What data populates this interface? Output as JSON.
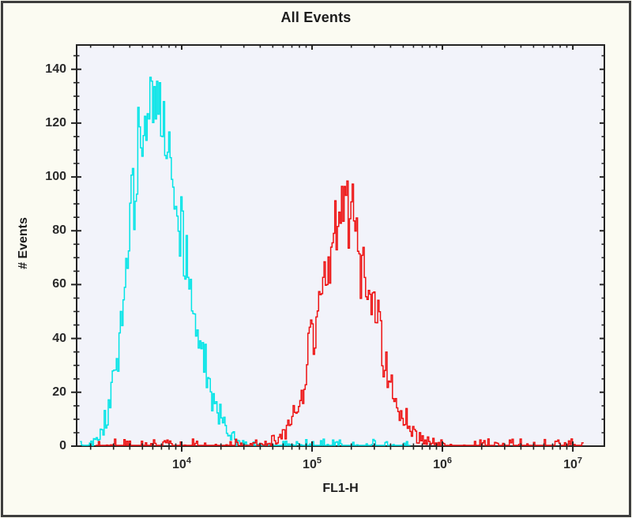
{
  "figure": {
    "background": "#fbfbf2",
    "border_color": "#3d3d3d",
    "plot_background": "#f2f3fa",
    "frame_color": "#232323",
    "text_color": "#1c1c1c"
  },
  "chart_data": {
    "type": "line",
    "subtype": "flow-cytometry-histogram-overlay",
    "title": "All Events",
    "xlabel": "FL1-H",
    "ylabel": "# Events",
    "grid": false,
    "legend": false,
    "x_scale": "log10",
    "x_range_log10": [
      3.194,
      7.242
    ],
    "x_major_ticks": [
      {
        "value": 10000,
        "base": "10",
        "exp": "4"
      },
      {
        "value": 100000,
        "base": "10",
        "exp": "5"
      },
      {
        "value": 1000000,
        "base": "10",
        "exp": "6"
      },
      {
        "value": 10000000,
        "base": "10",
        "exp": "7"
      }
    ],
    "ylim": [
      0,
      149
    ],
    "y_major_step": 20,
    "y_minor_step": 5,
    "y_tick_labels": [
      "0",
      "20",
      "40",
      "60",
      "80",
      "100",
      "120",
      "140"
    ],
    "series": [
      {
        "name": "cyan-population",
        "color": "#00e4e6",
        "peak": {
          "x_approx": 6500,
          "y_max": 137
        },
        "range_log10": [
          3.22,
          5.76
        ],
        "noise_scale": 1.9,
        "seed": 13,
        "y_cap": 137,
        "envelope": [
          [
            3.24,
            0.3
          ],
          [
            3.28,
            0.8
          ],
          [
            3.32,
            2
          ],
          [
            3.36,
            4
          ],
          [
            3.4,
            8
          ],
          [
            3.44,
            14
          ],
          [
            3.48,
            26
          ],
          [
            3.52,
            42
          ],
          [
            3.56,
            62
          ],
          [
            3.6,
            82
          ],
          [
            3.64,
            100
          ],
          [
            3.68,
            112
          ],
          [
            3.72,
            120
          ],
          [
            3.76,
            125
          ],
          [
            3.8,
            127
          ],
          [
            3.84,
            122
          ],
          [
            3.88,
            113
          ],
          [
            3.92,
            102
          ],
          [
            3.96,
            90
          ],
          [
            4.0,
            76
          ],
          [
            4.04,
            63
          ],
          [
            4.08,
            52
          ],
          [
            4.12,
            42
          ],
          [
            4.16,
            33
          ],
          [
            4.2,
            25
          ],
          [
            4.24,
            18
          ],
          [
            4.28,
            12
          ],
          [
            4.32,
            8
          ],
          [
            4.36,
            5
          ],
          [
            4.4,
            3
          ],
          [
            4.44,
            1.8
          ],
          [
            4.48,
            1
          ],
          [
            4.52,
            0.5
          ]
        ]
      },
      {
        "name": "red-population",
        "color": "#ee1111",
        "peak": {
          "x_approx": 180000,
          "y_max": 108
        },
        "range_log10": [
          3.34,
          7.08
        ],
        "noise_scale": 2.2,
        "seed": 101,
        "y_cap": 108,
        "envelope": [
          [
            4.56,
            0.4
          ],
          [
            4.62,
            0.8
          ],
          [
            4.68,
            1.5
          ],
          [
            4.74,
            3
          ],
          [
            4.8,
            6
          ],
          [
            4.86,
            12
          ],
          [
            4.92,
            22
          ],
          [
            4.98,
            36
          ],
          [
            5.04,
            52
          ],
          [
            5.1,
            68
          ],
          [
            5.15,
            80
          ],
          [
            5.2,
            89
          ],
          [
            5.24,
            91
          ],
          [
            5.28,
            88
          ],
          [
            5.33,
            81
          ],
          [
            5.38,
            71
          ],
          [
            5.43,
            59
          ],
          [
            5.48,
            47
          ],
          [
            5.53,
            36
          ],
          [
            5.58,
            26
          ],
          [
            5.63,
            18
          ],
          [
            5.68,
            12
          ],
          [
            5.73,
            7.5
          ],
          [
            5.78,
            4.5
          ],
          [
            5.83,
            2.8
          ],
          [
            5.88,
            1.7
          ],
          [
            5.93,
            1
          ],
          [
            5.98,
            0.6
          ],
          [
            6.03,
            0.4
          ]
        ]
      }
    ]
  }
}
